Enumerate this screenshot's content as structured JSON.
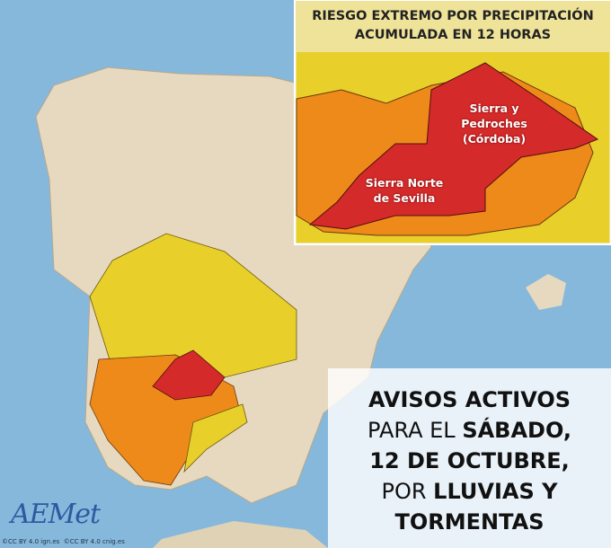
{
  "inset": {
    "title": [
      "RIESGO EXTREMO POR PRECIPITACIÓN",
      "ACUMULADA EN 12 HORAS"
    ],
    "labels": [
      [
        "Sierra y",
        "Pedroches",
        "(Córdoba)"
      ],
      [
        "Sierra Norte",
        "de Sevilla"
      ]
    ]
  },
  "notice": {
    "lines": [
      [
        {
          "text": "AVISOS ACTIVOS",
          "bold": true
        }
      ],
      [
        {
          "text": "PARA EL ",
          "bold": false
        },
        {
          "text": "SÁBADO,",
          "bold": true
        }
      ],
      [
        {
          "text": "12 DE OCTUBRE,",
          "bold": true
        }
      ],
      [
        {
          "text": "POR ",
          "bold": false
        },
        {
          "text": "LLUVIAS Y",
          "bold": true
        }
      ],
      [
        {
          "text": "TORMENTAS",
          "bold": true
        }
      ]
    ]
  },
  "logo": "AEMet",
  "credits": [
    "©CC BY 4.0 ign.es",
    "©CC BY 4.0 cnig.es"
  ]
}
